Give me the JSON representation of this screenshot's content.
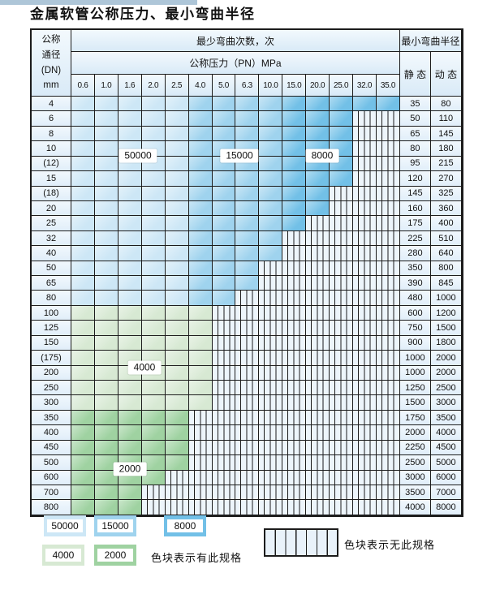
{
  "title": "金属软管公称压力、最小弯曲半径",
  "header": {
    "dn_lines": [
      "公称",
      "通径",
      "(DN)",
      "mm"
    ],
    "bend_cycles": "最少弯曲次数，次",
    "pressure": "公称压力（PN）MPa",
    "min_bend_radius": "最小弯曲半径",
    "static": "静 态",
    "dynamic": "动 态",
    "pn_columns": [
      "0.6",
      "1.0",
      "1.6",
      "2.0",
      "2.5",
      "4.0",
      "5.0",
      "6.3",
      "10.0",
      "15.0",
      "20.0",
      "25.0",
      "32.0",
      "35.0"
    ]
  },
  "blue_bands": {
    "light_end_idx": 4,
    "medium_end_idx": 8
  },
  "rows": [
    {
      "dn": "4",
      "static": "35",
      "dynamic": "80",
      "zone": "blue",
      "max_pn": "35.0"
    },
    {
      "dn": "6",
      "static": "50",
      "dynamic": "110",
      "zone": "blue",
      "max_pn": "25.0"
    },
    {
      "dn": "8",
      "static": "65",
      "dynamic": "145",
      "zone": "blue",
      "max_pn": "25.0"
    },
    {
      "dn": "10",
      "static": "80",
      "dynamic": "180",
      "zone": "blue",
      "max_pn": "25.0"
    },
    {
      "dn": "(12)",
      "static": "95",
      "dynamic": "215",
      "zone": "blue",
      "max_pn": "25.0"
    },
    {
      "dn": "15",
      "static": "120",
      "dynamic": "270",
      "zone": "blue",
      "max_pn": "25.0"
    },
    {
      "dn": "(18)",
      "static": "145",
      "dynamic": "325",
      "zone": "blue",
      "max_pn": "20.0"
    },
    {
      "dn": "20",
      "static": "160",
      "dynamic": "360",
      "zone": "blue",
      "max_pn": "20.0"
    },
    {
      "dn": "25",
      "static": "175",
      "dynamic": "400",
      "zone": "blue",
      "max_pn": "15.0"
    },
    {
      "dn": "32",
      "static": "225",
      "dynamic": "510",
      "zone": "blue",
      "max_pn": "10.0"
    },
    {
      "dn": "40",
      "static": "280",
      "dynamic": "640",
      "zone": "blue",
      "max_pn": "10.0"
    },
    {
      "dn": "50",
      "static": "350",
      "dynamic": "800",
      "zone": "blue",
      "max_pn": "6.3"
    },
    {
      "dn": "65",
      "static": "390",
      "dynamic": "845",
      "zone": "blue",
      "max_pn": "6.3"
    },
    {
      "dn": "80",
      "static": "480",
      "dynamic": "1000",
      "zone": "blue",
      "max_pn": "5.0"
    },
    {
      "dn": "100",
      "static": "600",
      "dynamic": "1200",
      "zone": "green4000",
      "max_pn": "4.0"
    },
    {
      "dn": "125",
      "static": "750",
      "dynamic": "1500",
      "zone": "green4000",
      "max_pn": "4.0"
    },
    {
      "dn": "150",
      "static": "900",
      "dynamic": "1800",
      "zone": "green4000",
      "max_pn": "4.0"
    },
    {
      "dn": "(175)",
      "static": "1000",
      "dynamic": "2000",
      "zone": "green4000",
      "max_pn": "4.0"
    },
    {
      "dn": "200",
      "static": "1000",
      "dynamic": "2000",
      "zone": "green4000",
      "max_pn": "4.0"
    },
    {
      "dn": "250",
      "static": "1250",
      "dynamic": "2500",
      "zone": "green4000",
      "max_pn": "4.0"
    },
    {
      "dn": "300",
      "static": "1500",
      "dynamic": "3000",
      "zone": "green4000",
      "max_pn": "4.0"
    },
    {
      "dn": "350",
      "static": "1750",
      "dynamic": "3500",
      "zone": "green2000",
      "max_pn": "2.5"
    },
    {
      "dn": "400",
      "static": "2000",
      "dynamic": "4000",
      "zone": "green2000",
      "max_pn": "2.5"
    },
    {
      "dn": "450",
      "static": "2250",
      "dynamic": "4500",
      "zone": "green2000",
      "max_pn": "2.5"
    },
    {
      "dn": "500",
      "static": "2500",
      "dynamic": "5000",
      "zone": "green2000",
      "max_pn": "2.5"
    },
    {
      "dn": "600",
      "static": "3000",
      "dynamic": "6000",
      "zone": "green2000",
      "max_pn": "2.0"
    },
    {
      "dn": "700",
      "static": "3500",
      "dynamic": "7000",
      "zone": "green2000",
      "max_pn": "1.6"
    },
    {
      "dn": "800",
      "static": "4000",
      "dynamic": "8000",
      "zone": "green2000",
      "max_pn": "1.6"
    }
  ],
  "zone_labels": [
    "50000",
    "15000",
    "8000",
    "4000",
    "2000"
  ],
  "legend": {
    "chips": [
      {
        "value": "50000",
        "color_key": "c50000"
      },
      {
        "value": "15000",
        "color_key": "c15000"
      },
      {
        "value": "8000",
        "color_key": "c8000"
      },
      {
        "value": "4000",
        "color_key": "c4000"
      },
      {
        "value": "2000",
        "color_key": "c2000"
      }
    ],
    "has_spec_label": "色块表示有此规格",
    "no_spec_label": "色块表示无此规格"
  },
  "colors": {
    "c50000": "#cde7f6",
    "c15000": "#9fd3ee",
    "c8000": "#72c0e7",
    "c4000": "#d7e9d3",
    "c2000": "#9fd2a1",
    "no_spec_bg": "#edf5fb",
    "grid_line": "#1c1c1c",
    "accent_strip": "#aec6d8"
  }
}
